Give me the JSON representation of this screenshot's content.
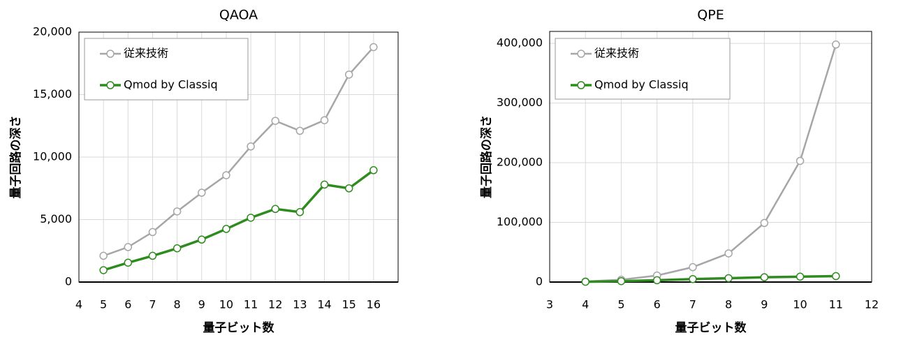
{
  "chart_data": [
    {
      "type": "line",
      "title": "QAOA",
      "xlabel": "量子ビット数",
      "ylabel": "量子回路の深さ",
      "x": [
        5,
        6,
        7,
        8,
        9,
        10,
        11,
        12,
        13,
        14,
        15,
        16
      ],
      "series": [
        {
          "name": "従来技術",
          "color": "#a6a6a6",
          "values": [
            2100,
            2800,
            4000,
            5650,
            7150,
            8550,
            10850,
            12900,
            12100,
            12950,
            16600,
            18800
          ]
        },
        {
          "name": "Qmod by Classiq",
          "color": "#2e8b1e",
          "values": [
            950,
            1550,
            2100,
            2700,
            3400,
            4250,
            5150,
            5850,
            5600,
            7800,
            7500,
            8950
          ]
        }
      ],
      "xlim": [
        4,
        17
      ],
      "xticks": [
        4,
        5,
        6,
        7,
        8,
        9,
        10,
        11,
        12,
        13,
        14,
        15,
        16
      ],
      "ylim": [
        0,
        20000
      ],
      "yticks": [
        0,
        {
          "value": 5000,
          "label": "5,000"
        },
        {
          "value": 10000,
          "label": "10,000"
        },
        {
          "value": 15000,
          "label": "15,000"
        },
        {
          "value": 20000,
          "label": "20,000"
        }
      ],
      "grid": true,
      "legend": "upper left"
    },
    {
      "type": "line",
      "title": "QPE",
      "xlabel": "量子ビット数",
      "ylabel": "量子回路の深さ",
      "x": [
        4,
        5,
        6,
        7,
        8,
        9,
        10,
        11
      ],
      "series": [
        {
          "name": "従来技術",
          "color": "#a6a6a6",
          "values": [
            1000,
            4000,
            11000,
            25000,
            48000,
            99000,
            203000,
            398000
          ]
        },
        {
          "name": "Qmod by Classiq",
          "color": "#2e8b1e",
          "values": [
            500,
            1500,
            3000,
            5000,
            6500,
            8000,
            9000,
            10000
          ]
        }
      ],
      "xlim": [
        3,
        12
      ],
      "xticks": [
        3,
        4,
        5,
        6,
        7,
        8,
        9,
        10,
        11,
        12
      ],
      "ylim": [
        0,
        420000
      ],
      "yticks": [
        0,
        {
          "value": 100000,
          "label": "100,000"
        },
        {
          "value": 200000,
          "label": "200,000"
        },
        {
          "value": 300000,
          "label": "300,000"
        },
        {
          "value": 400000,
          "label": "400,000"
        }
      ],
      "grid": true,
      "legend": "upper left"
    }
  ]
}
